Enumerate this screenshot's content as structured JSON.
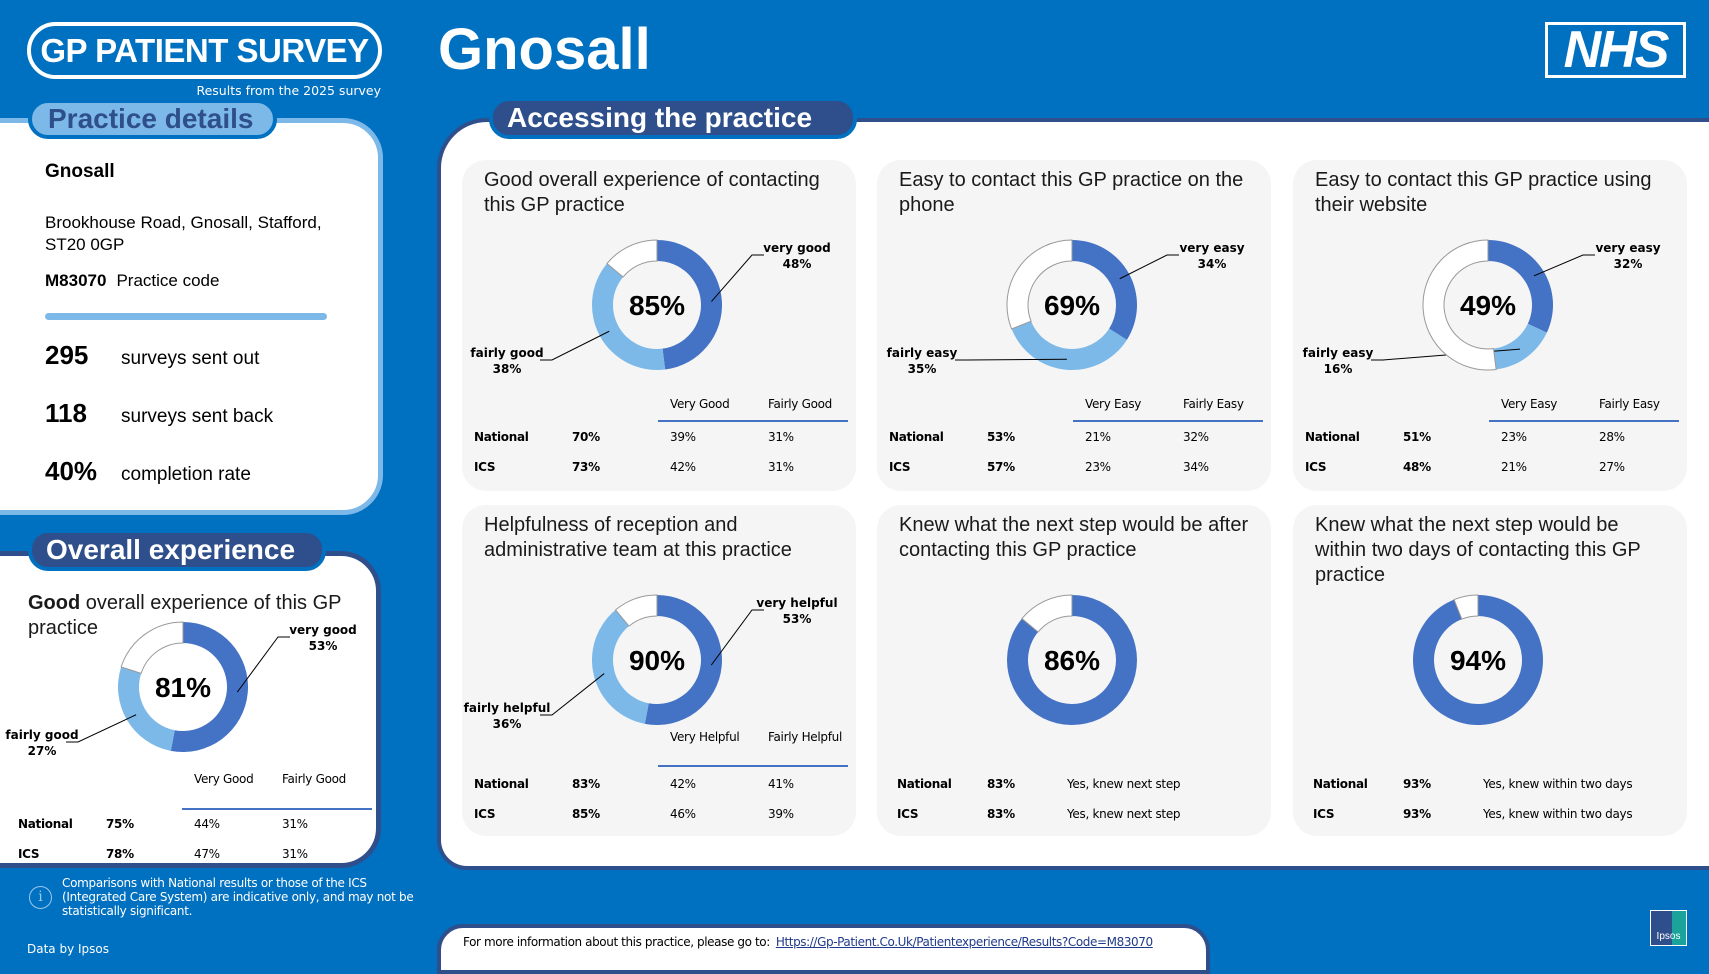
{
  "header": {
    "survey_logo": "GP PATIENT SURVEY",
    "results_year": "Results from the 2025 survey",
    "page_title": "Gnosall",
    "nhs_logo": "NHS"
  },
  "practice_details": {
    "tab_label": "Practice details",
    "name": "Gnosall",
    "address": "Brookhouse Road, Gnosall, Stafford, ST20 0GP",
    "code": "M83070",
    "code_label": "Practice code",
    "stats": [
      {
        "value": "295",
        "label": "surveys sent out"
      },
      {
        "value": "118",
        "label": "surveys sent back"
      },
      {
        "value": "40%",
        "label": "completion rate"
      }
    ]
  },
  "overall": {
    "tab_label": "Overall experience",
    "card": {
      "title_bold": "Good",
      "title": " overall experience of this GP practice",
      "total": "81%",
      "segments": [
        {
          "label": "very good",
          "value": 53
        },
        {
          "label": "fairly good",
          "value": 27
        }
      ],
      "columns": [
        "Very Good",
        "Fairly Good"
      ],
      "rows": [
        {
          "label": "National",
          "total": "75%",
          "values": [
            "44%",
            "31%"
          ]
        },
        {
          "label": "ICS",
          "total": "78%",
          "values": [
            "47%",
            "31%"
          ]
        }
      ]
    }
  },
  "info_note": "Comparisons with National results or those of the ICS (Integrated Care System) are indicative only, and may not be statistically significant.",
  "data_by": "Data by Ipsos",
  "accessing": {
    "tab_label": "Accessing the practice",
    "cards": [
      {
        "title": "Good overall experience of contacting this GP practice",
        "total": "85%",
        "segments": [
          {
            "label": "very good",
            "value": 48
          },
          {
            "label": "fairly good",
            "value": 38
          }
        ],
        "columns": [
          "Very Good",
          "Fairly Good"
        ],
        "rows": [
          {
            "label": "National",
            "total": "70%",
            "values": [
              "39%",
              "31%"
            ]
          },
          {
            "label": "ICS",
            "total": "73%",
            "values": [
              "42%",
              "31%"
            ]
          }
        ]
      },
      {
        "title": "Easy to contact this GP practice on the phone",
        "total": "69%",
        "segments": [
          {
            "label": "very easy",
            "value": 34
          },
          {
            "label": "fairly easy",
            "value": 35
          }
        ],
        "columns": [
          "Very Easy",
          "Fairly Easy"
        ],
        "rows": [
          {
            "label": "National",
            "total": "53%",
            "values": [
              "21%",
              "32%"
            ]
          },
          {
            "label": "ICS",
            "total": "57%",
            "values": [
              "23%",
              "34%"
            ]
          }
        ]
      },
      {
        "title": "Easy to contact this GP practice using their website",
        "total": "49%",
        "segments": [
          {
            "label": "very easy",
            "value": 32
          },
          {
            "label": "fairly easy",
            "value": 16
          }
        ],
        "columns": [
          "Very Easy",
          "Fairly Easy"
        ],
        "rows": [
          {
            "label": "National",
            "total": "51%",
            "values": [
              "23%",
              "28%"
            ]
          },
          {
            "label": "ICS",
            "total": "48%",
            "values": [
              "21%",
              "27%"
            ]
          }
        ]
      },
      {
        "title": "Helpfulness of reception and administrative team at this practice",
        "total": "90%",
        "segments": [
          {
            "label": "very helpful",
            "value": 53
          },
          {
            "label": "fairly helpful",
            "value": 36
          }
        ],
        "columns": [
          "Very Helpful",
          "Fairly Helpful"
        ],
        "rows": [
          {
            "label": "National",
            "total": "83%",
            "values": [
              "42%",
              "41%"
            ]
          },
          {
            "label": "ICS",
            "total": "85%",
            "values": [
              "46%",
              "39%"
            ]
          }
        ]
      },
      {
        "title": "Knew what the next step would be after contacting this GP practice",
        "total": "86%",
        "segments": [
          {
            "value": 86
          }
        ],
        "columns": [],
        "rows": [
          {
            "label": "National",
            "total": "83%",
            "values": [
              "Yes, knew next step"
            ]
          },
          {
            "label": "ICS",
            "total": "83%",
            "values": [
              "Yes, knew next step"
            ]
          }
        ]
      },
      {
        "title": "Knew what the next step would be within two days of contacting this GP practice",
        "total": "94%",
        "segments": [
          {
            "value": 94
          }
        ],
        "columns": [],
        "rows": [
          {
            "label": "National",
            "total": "93%",
            "values": [
              "Yes, knew within two days"
            ]
          },
          {
            "label": "ICS",
            "total": "93%",
            "values": [
              "Yes, knew within two days"
            ]
          }
        ]
      }
    ]
  },
  "footer": {
    "text": "For more information about this practice, please go to:",
    "link": "Https://Gp-Patient.Co.Uk/Patientexperience/Results?Code=M83070",
    "ipsos_logo": "Ipsos"
  },
  "colors": {
    "background": "#0070c0",
    "navy": "#2f4f8c",
    "light_blue": "#7db9e8",
    "very": "#4472c4",
    "fairly": "#7cb9e8"
  }
}
